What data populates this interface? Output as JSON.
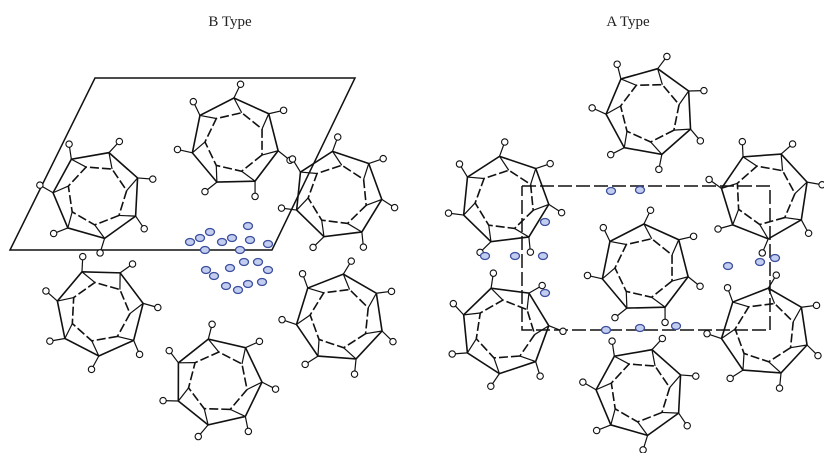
{
  "panels": [
    {
      "label": "B Type"
    },
    {
      "label": "A Type"
    }
  ]
}
